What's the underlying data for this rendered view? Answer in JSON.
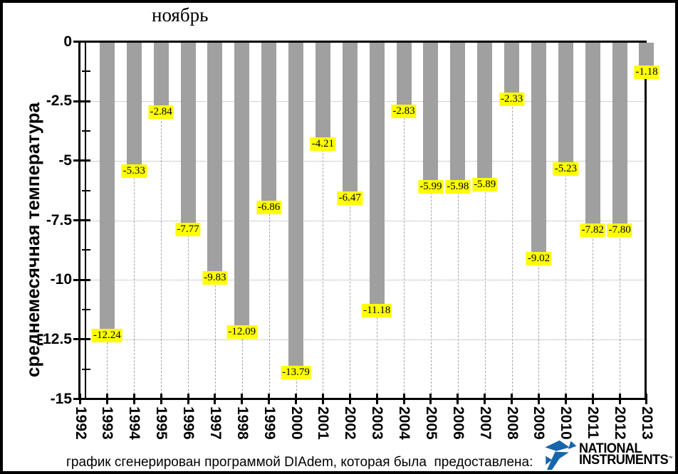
{
  "page": {
    "caption": "график сгенерирован программой DIAdem, которая была  предоставлена:"
  },
  "logo": {
    "name": "National Instruments",
    "line1": "NATIONAL",
    "line2": "INSTRUMENTS",
    "trademark": "™",
    "color": "#1666ad"
  },
  "chart_data": {
    "type": "bar",
    "title": "ноябрь",
    "ylabel": "среднемесячная температура",
    "xlabel": "",
    "categories": [
      1993,
      1994,
      1995,
      1996,
      1997,
      1998,
      1999,
      2000,
      2001,
      2002,
      2003,
      2004,
      2005,
      2006,
      2007,
      2008,
      2009,
      2010,
      2011,
      2012,
      2013
    ],
    "values": [
      -12.24,
      -5.33,
      -2.84,
      -7.77,
      -9.83,
      -12.09,
      -6.86,
      -13.79,
      -4.21,
      -6.47,
      -11.18,
      -2.83,
      -5.99,
      -5.98,
      -5.89,
      -2.33,
      -9.02,
      -5.23,
      -7.82,
      -7.8,
      -1.18
    ],
    "value_labels": [
      "-12.24",
      "-5.33",
      "-2.84",
      "-7.77",
      "-9.83",
      "-12.09",
      "-6.86",
      "-13.79",
      "-4.21",
      "-6.47",
      "-11.18",
      "-2.83",
      "-5.99",
      "-5.98",
      "-5.89",
      "-2.33",
      "-9.02",
      "-5.23",
      "-7.82",
      "-7.80",
      "-1.18"
    ],
    "x_tick_labels": [
      "1992",
      "1993",
      "1994",
      "1995",
      "1996",
      "1997",
      "1998",
      "1999",
      "2000",
      "2001",
      "2002",
      "2003",
      "2004",
      "2005",
      "2006",
      "2007",
      "2008",
      "2009",
      "2010",
      "2011",
      "2012",
      "2013"
    ],
    "ylim": [
      -15,
      0
    ],
    "y_major_ticks": [
      0,
      -2.5,
      -5,
      -7.5,
      -10,
      -12.5,
      -15
    ],
    "y_tick_labels": [
      "0",
      "-2.5",
      "-5",
      "-7.5",
      "-10",
      "-12.5",
      "-15"
    ],
    "y_minor_tick_interval": 1.25,
    "grid": true,
    "legend": "none",
    "bar_color": "#a0a0a0",
    "value_label_bg": "#ffff00",
    "axis_color": "#000000",
    "grid_color": "#a6a6a6"
  }
}
